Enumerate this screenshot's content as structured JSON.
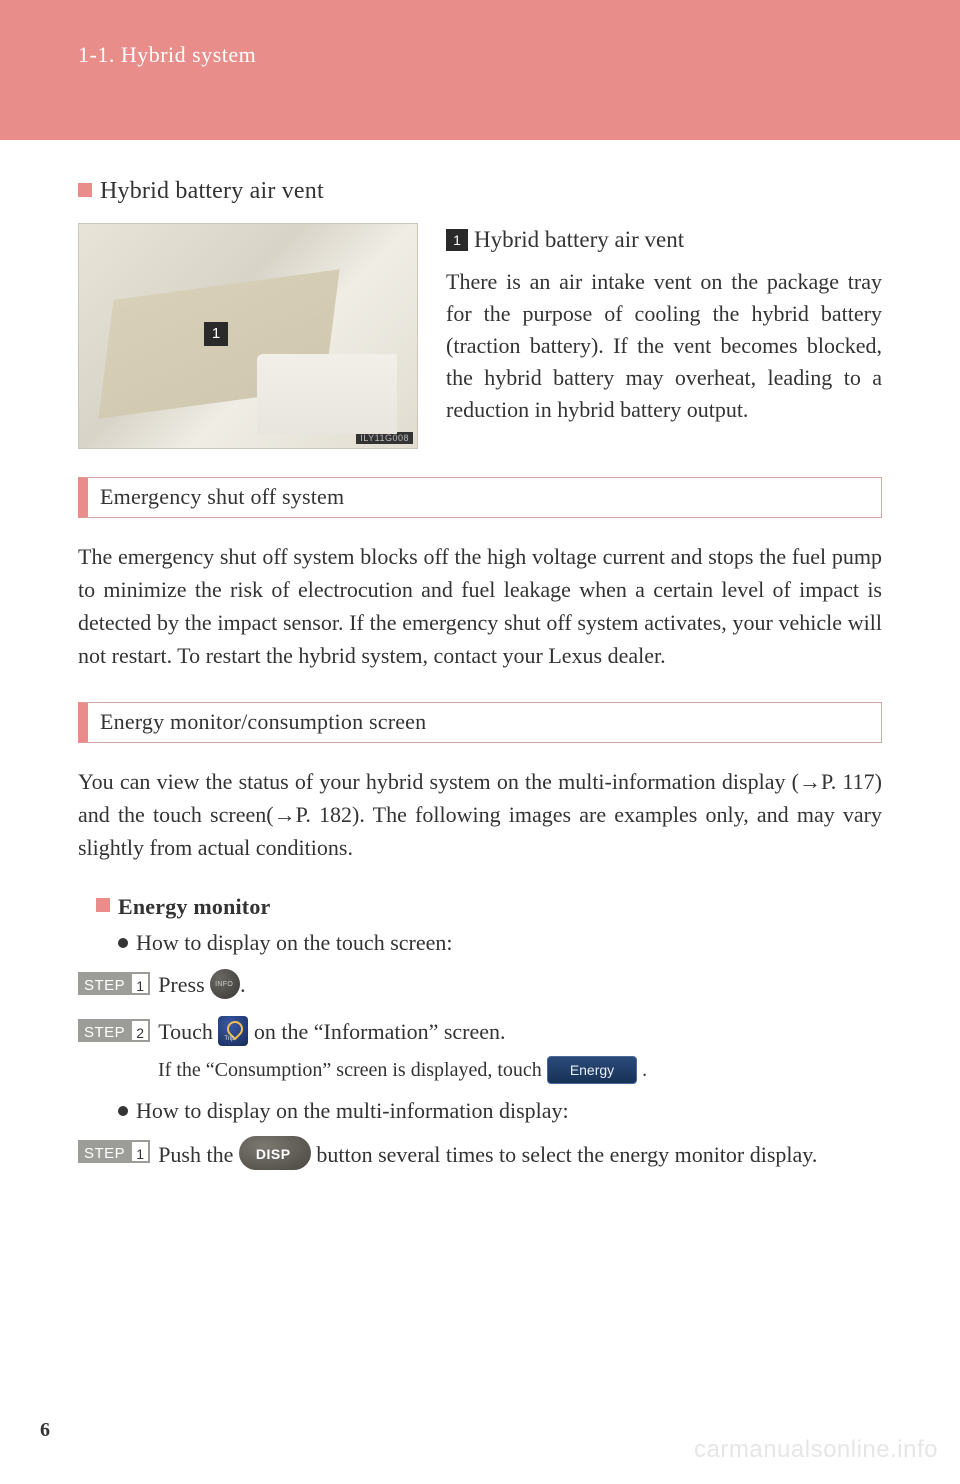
{
  "colors": {
    "band": "#e88d8a",
    "text": "#333333",
    "step_badge": "#9c9c98",
    "watermark": "#e6e6e6"
  },
  "header": {
    "section": "1-1. Hybrid system"
  },
  "page_number": "6",
  "watermark": "carmanualsonline.info",
  "sub1": {
    "title": "Hybrid battery air vent",
    "photo_code": "ILY11G008",
    "marker_label": "1",
    "item_title": "Hybrid battery air vent",
    "item_body": "There is an air intake vent on the package tray for the purpose of cooling the hybrid battery (traction battery). If the vent becomes blocked, the hybrid battery may overheat, leading to a reduction in hybrid battery output."
  },
  "bar1": {
    "title": "Emergency shut off system",
    "para": "The emergency shut off system blocks off the high voltage current and stops the fuel pump to minimize the risk of electrocution and fuel leakage when a certain level of impact is detected by the impact sensor. If the emergency shut off system activates, your vehicle will not restart. To restart the hybrid system, contact your Lexus dealer."
  },
  "bar2": {
    "title": "Energy monitor/consumption screen",
    "intro_a": "You can view the status of your hybrid system on the multi-information display (",
    "intro_ref1": "P. 117",
    "intro_b": ") and the touch screen(",
    "intro_ref2": "P. 182",
    "intro_c": "). The following images are examples only, and may vary slightly from actual conditions.",
    "sub_title": "Energy monitor",
    "howto1": "How to display on the touch screen:",
    "step_label": "STEP",
    "step1_num": "1",
    "step1_a": "Press ",
    "step1_b": ".",
    "step2_num": "2",
    "step2_a": "Touch ",
    "step2_b": " on the “Information” screen.",
    "step2_note_a": "If the “Consumption” screen is displayed, touch ",
    "step2_note_b": " .",
    "energy_btn": "Energy",
    "howto2": "How to display on the multi-information display:",
    "step3_num": "1",
    "step3_a": "Push the ",
    "step3_b": " button several times to select the energy monitor display."
  }
}
